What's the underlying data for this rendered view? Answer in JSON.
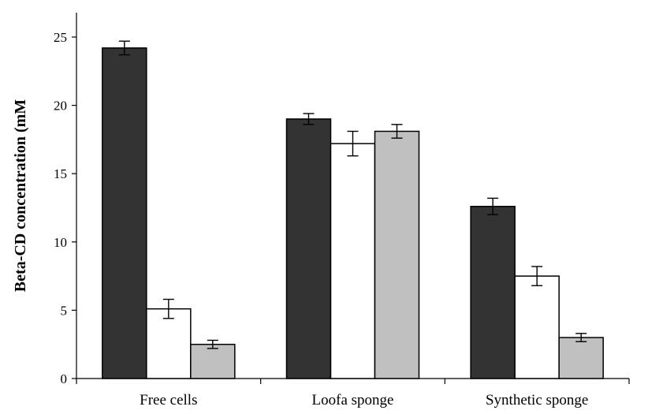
{
  "chart_data": {
    "type": "bar",
    "title": "",
    "xlabel": "",
    "ylabel": "Beta-CD concentration (mM",
    "ylim": [
      0,
      25
    ],
    "yticks": [
      0,
      5,
      10,
      15,
      20,
      25
    ],
    "grid": false,
    "categories": [
      "Free cells",
      "Loofa sponge",
      "Synthetic sponge"
    ],
    "series": [
      {
        "color": "#333333",
        "values": [
          24.2,
          19.0,
          12.6
        ],
        "errors": [
          0.5,
          0.4,
          0.6
        ]
      },
      {
        "color": "#ffffff",
        "values": [
          5.1,
          17.2,
          7.5
        ],
        "errors": [
          0.7,
          0.9,
          0.7
        ]
      },
      {
        "color": "#c0c0c0",
        "values": [
          2.5,
          18.1,
          3.0
        ],
        "errors": [
          0.3,
          0.5,
          0.3
        ]
      }
    ]
  }
}
